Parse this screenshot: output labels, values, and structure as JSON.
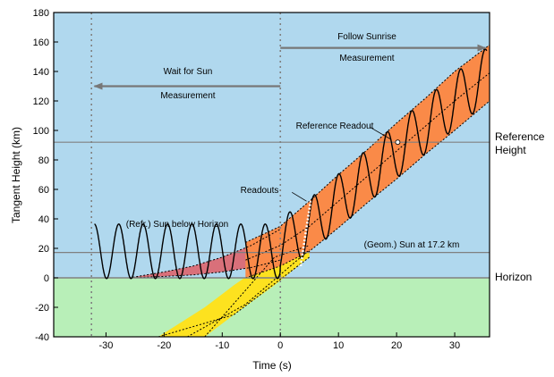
{
  "chart_data": {
    "type": "line",
    "xlabel": "Time (s)",
    "ylabel": "Tangent Height (km)",
    "xlim": [
      -39,
      36
    ],
    "ylim": [
      -40,
      180
    ],
    "x_ticks": [
      -30,
      -20,
      -10,
      0,
      10,
      20,
      30
    ],
    "y_ticks": [
      -40,
      -20,
      0,
      20,
      40,
      60,
      80,
      100,
      120,
      140,
      160,
      180
    ],
    "sky_color": "#b0d8ee",
    "ground_color": "#b8efb8",
    "refraction_band_color": "#d9707a",
    "sun_band_color": "#fa8a48",
    "geometric_band_color": "#fde21f",
    "reference_height_km": 92,
    "horizon_height_km": 0,
    "sun_geometric_height_km": 17.2,
    "vertical_markers_s": [
      -32.5,
      0
    ],
    "series": [
      {
        "name": "Sun band (refracted)",
        "x": [
          -6,
          0,
          5,
          10,
          15,
          20,
          25,
          30,
          36
        ],
        "y_lower": [
          0,
          8,
          18,
          34,
          51,
          67,
          84,
          100,
          120
        ],
        "y_upper": [
          24,
          35,
          52,
          70,
          87,
          105,
          122,
          140,
          158
        ],
        "y_center": [
          12,
          22,
          35,
          52,
          69,
          86,
          103,
          120,
          139
        ]
      },
      {
        "name": "Refraction tail",
        "x": [
          -26,
          -20,
          -15,
          -10,
          -5,
          0
        ],
        "y_lower": [
          0,
          1,
          2,
          4,
          7,
          12
        ],
        "y_upper": [
          0,
          4,
          8,
          14,
          22,
          33
        ]
      },
      {
        "name": "Geometric sun",
        "x": [
          -21,
          -13,
          -8,
          -1,
          5
        ],
        "y_lower": [
          -40,
          -40,
          -25,
          -5,
          14
        ],
        "y_upper": [
          -40,
          -20,
          -5,
          14,
          22
        ]
      },
      {
        "name": "Scan oscillation",
        "x_start": -32,
        "x_end": 35.5,
        "period_s": 4.2,
        "wait_amplitude_km": 18.5,
        "wait_center_km": 18
      }
    ],
    "annotations": {
      "wait_label_1": "Wait for Sun",
      "wait_label_2": "Measurement",
      "follow_label_1": "Follow Sunrise",
      "follow_label_2": "Measurement",
      "reference_readout": "Reference Readout",
      "readouts": "Readouts",
      "sun_below": "(Refr.) Sun below Horizon",
      "geom_sun": "(Geom.) Sun at 17.2 km",
      "reference_height_1": "Reference",
      "reference_height_2": "Height",
      "horizon": "Horizon"
    }
  }
}
